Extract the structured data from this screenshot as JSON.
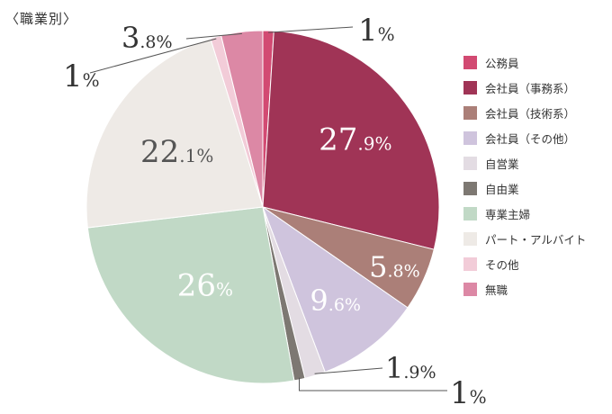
{
  "title": "〈職業別〉",
  "chart_data": {
    "type": "pie",
    "start": "12 o'clock",
    "direction": "clockwise",
    "legend_position": "right",
    "slices": [
      {
        "name": "公務員",
        "value": 1,
        "label": "1%",
        "color": "#d24a72"
      },
      {
        "name": "会社員（事務系）",
        "value": 27.9,
        "label": "27.9%",
        "color": "#a03456"
      },
      {
        "name": "会社員（技術系）",
        "value": 5.8,
        "label": "5.8%",
        "color": "#ab7f78"
      },
      {
        "name": "会社員（その他）",
        "value": 9.6,
        "label": "9.6%",
        "color": "#cfc4dd"
      },
      {
        "name": "自営業",
        "value": 1.9,
        "label": "1.9%",
        "color": "#e3dce3"
      },
      {
        "name": "自由業",
        "value": 1,
        "label": "1%",
        "color": "#7d7872"
      },
      {
        "name": "専業主婦",
        "value": 26,
        "label": "26%",
        "color": "#c1d9c6"
      },
      {
        "name": "パート・アルバイト",
        "value": 22.1,
        "label": "22.1%",
        "color": "#eeeae6"
      },
      {
        "name": "その他",
        "value": 1,
        "label": "1%",
        "color": "#f2ccd8"
      },
      {
        "name": "無職",
        "value": 3.8,
        "label": "3.8%",
        "color": "#dc88a5"
      }
    ]
  }
}
